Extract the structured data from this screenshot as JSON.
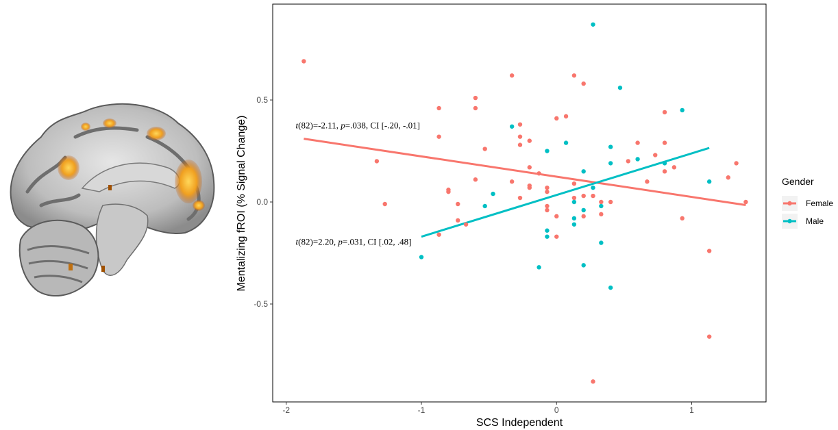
{
  "chart_data": {
    "type": "scatter",
    "xlabel": "SCS Independent",
    "ylabel": "Mentalizing fROI (% Signal Change)",
    "xlim": [
      -2.1,
      1.55
    ],
    "ylim": [
      -0.98,
      0.97
    ],
    "x_ticks": [
      -2,
      -1,
      0,
      1
    ],
    "y_ticks": [
      -0.5,
      0.0,
      0.5
    ],
    "x_tick_labels": [
      "-2",
      "-1",
      "0",
      "1"
    ],
    "y_tick_labels": [
      "-0.5",
      "0.0",
      "0.5"
    ],
    "grid": false,
    "legend_position": "right",
    "legend": {
      "title": "Gender"
    },
    "annotations": [
      {
        "id": "female-stat",
        "italic": "t",
        "rest": "(82)=-2.11, ",
        "italic2": "p",
        "rest2": "=.038, CI [-.20, -.01]",
        "x": -1.93,
        "y": 0.36
      },
      {
        "id": "male-stat",
        "italic": "t",
        "rest": "(82)=2.20, ",
        "italic2": "p",
        "rest2": "=.031, CI [.02, .48]",
        "x": -1.93,
        "y": -0.21
      }
    ],
    "series": [
      {
        "name": "Female",
        "color": "#F8766D",
        "fit": {
          "x": [
            -1.87,
            1.4
          ],
          "y": [
            0.31,
            -0.015
          ]
        },
        "points": [
          [
            -1.87,
            0.69
          ],
          [
            -1.33,
            0.2
          ],
          [
            -1.27,
            -0.01
          ],
          [
            -0.87,
            0.46
          ],
          [
            -0.87,
            0.32
          ],
          [
            -0.87,
            -0.16
          ],
          [
            -0.8,
            0.06
          ],
          [
            -0.8,
            0.05
          ],
          [
            -0.73,
            -0.01
          ],
          [
            -0.73,
            -0.09
          ],
          [
            -0.67,
            -0.11
          ],
          [
            -0.6,
            0.51
          ],
          [
            -0.6,
            0.46
          ],
          [
            -0.6,
            0.11
          ],
          [
            -0.53,
            0.26
          ],
          [
            -0.33,
            0.62
          ],
          [
            -0.33,
            0.1
          ],
          [
            -0.27,
            0.38
          ],
          [
            -0.27,
            0.32
          ],
          [
            -0.27,
            0.28
          ],
          [
            -0.27,
            0.02
          ],
          [
            -0.2,
            0.3
          ],
          [
            -0.2,
            0.17
          ],
          [
            -0.2,
            0.08
          ],
          [
            -0.2,
            0.07
          ],
          [
            -0.13,
            0.14
          ],
          [
            -0.07,
            0.07
          ],
          [
            -0.07,
            0.05
          ],
          [
            -0.07,
            -0.02
          ],
          [
            -0.07,
            -0.04
          ],
          [
            0.0,
            0.41
          ],
          [
            0.0,
            -0.07
          ],
          [
            0.0,
            -0.17
          ],
          [
            0.07,
            0.42
          ],
          [
            0.13,
            0.62
          ],
          [
            0.13,
            0.09
          ],
          [
            0.13,
            0.02
          ],
          [
            0.2,
            0.58
          ],
          [
            0.2,
            0.03
          ],
          [
            0.2,
            -0.07
          ],
          [
            0.27,
            0.03
          ],
          [
            0.27,
            -0.88
          ],
          [
            0.33,
            0.0
          ],
          [
            0.33,
            -0.06
          ],
          [
            0.4,
            0.0
          ],
          [
            0.53,
            0.2
          ],
          [
            0.6,
            0.29
          ],
          [
            0.67,
            0.1
          ],
          [
            0.73,
            0.23
          ],
          [
            0.8,
            0.44
          ],
          [
            0.8,
            0.29
          ],
          [
            0.8,
            0.15
          ],
          [
            0.87,
            0.17
          ],
          [
            0.93,
            -0.08
          ],
          [
            1.13,
            -0.24
          ],
          [
            1.13,
            -0.66
          ],
          [
            1.27,
            0.12
          ],
          [
            1.33,
            0.19
          ],
          [
            1.4,
            0.0
          ]
        ]
      },
      {
        "name": "Male",
        "color": "#00BFC4",
        "fit": {
          "x": [
            -1.0,
            1.13
          ],
          "y": [
            -0.17,
            0.265
          ]
        },
        "points": [
          [
            -1.0,
            -0.27
          ],
          [
            -0.53,
            -0.02
          ],
          [
            -0.47,
            0.04
          ],
          [
            -0.33,
            0.37
          ],
          [
            -0.13,
            -0.32
          ],
          [
            -0.07,
            0.25
          ],
          [
            -0.07,
            -0.14
          ],
          [
            -0.07,
            -0.17
          ],
          [
            0.07,
            0.29
          ],
          [
            0.13,
            0.0
          ],
          [
            0.13,
            -0.08
          ],
          [
            0.13,
            -0.11
          ],
          [
            0.2,
            0.15
          ],
          [
            0.2,
            -0.04
          ],
          [
            0.2,
            -0.31
          ],
          [
            0.27,
            0.87
          ],
          [
            0.27,
            0.07
          ],
          [
            0.33,
            -0.02
          ],
          [
            0.33,
            -0.2
          ],
          [
            0.4,
            0.27
          ],
          [
            0.4,
            0.19
          ],
          [
            0.4,
            -0.42
          ],
          [
            0.47,
            0.56
          ],
          [
            0.6,
            0.21
          ],
          [
            0.8,
            0.19
          ],
          [
            0.93,
            0.45
          ],
          [
            1.13,
            0.1
          ]
        ]
      }
    ]
  }
}
